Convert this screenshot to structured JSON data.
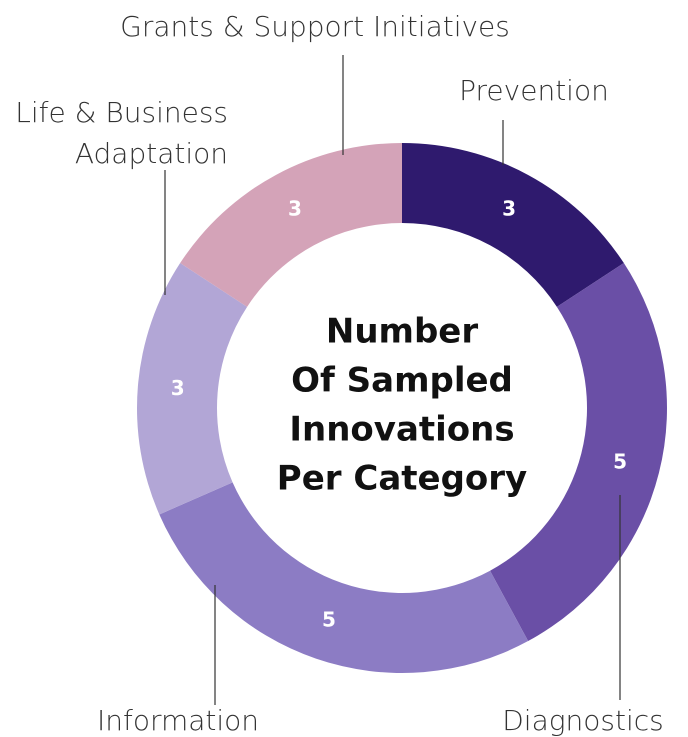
{
  "chart_data": {
    "type": "donut",
    "title": [
      "Number",
      "Of Sampled",
      "Innovations",
      "Per Category"
    ],
    "categories": [
      "Prevention",
      "Diagnostics",
      "Information",
      "Life & Business Adaptation",
      "Grants & Support Initiatives"
    ],
    "values": [
      3,
      5,
      5,
      3,
      3
    ],
    "colors": [
      "#2f1a6e",
      "#6a4fa6",
      "#8c7cc4",
      "#b2a6d6",
      "#d4a3b8"
    ]
  }
}
